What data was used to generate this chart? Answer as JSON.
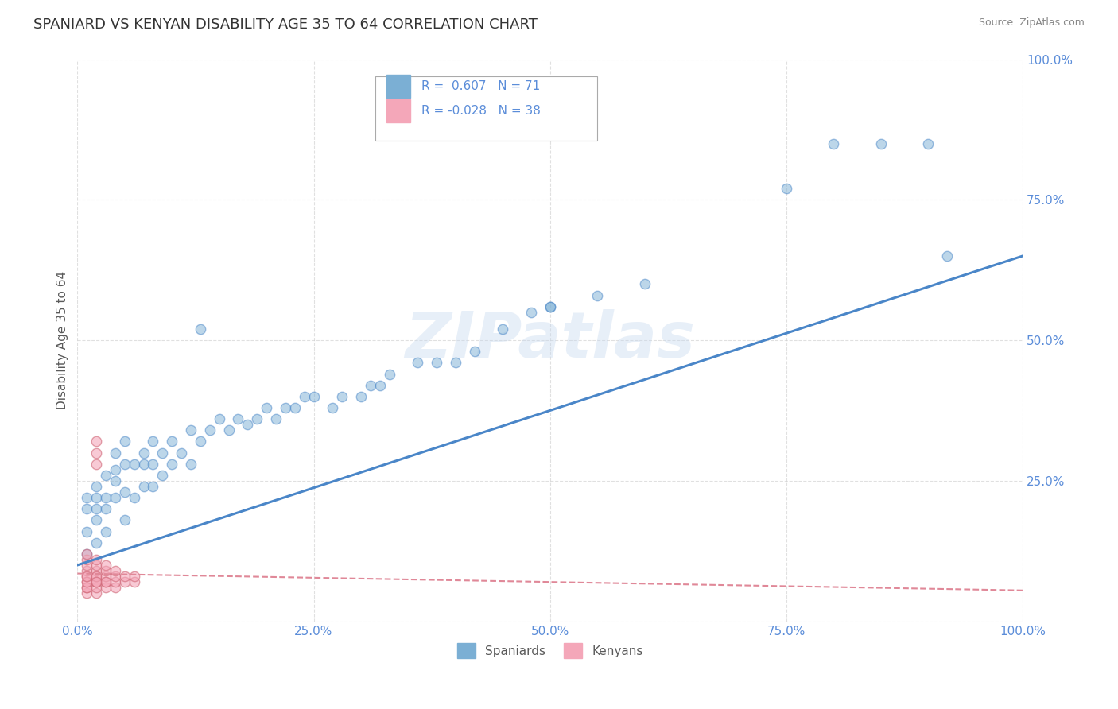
{
  "title": "SPANIARD VS KENYAN DISABILITY AGE 35 TO 64 CORRELATION CHART",
  "source": "Source: ZipAtlas.com",
  "ylabel": "Disability Age 35 to 64",
  "xlim": [
    0.0,
    1.0
  ],
  "ylim": [
    0.0,
    1.0
  ],
  "xticks": [
    0.0,
    0.25,
    0.5,
    0.75,
    1.0
  ],
  "yticks": [
    0.0,
    0.25,
    0.5,
    0.75,
    1.0
  ],
  "xticklabels": [
    "0.0%",
    "25.0%",
    "50.0%",
    "75.0%",
    "100.0%"
  ],
  "yticklabels": [
    "",
    "25.0%",
    "50.0%",
    "75.0%",
    "100.0%"
  ],
  "spaniard_color": "#7bafd4",
  "kenyan_color": "#f4a7b9",
  "spaniard_R": 0.607,
  "spaniard_N": 71,
  "kenyan_R": -0.028,
  "kenyan_N": 38,
  "legend_label_spaniard": "Spaniards",
  "legend_label_kenyan": "Kenyans",
  "watermark": "ZIPatlas",
  "spaniard_line_color": "#4a86c8",
  "kenyan_line_color": "#e08898",
  "background_color": "#ffffff",
  "grid_color": "#cccccc",
  "title_color": "#333333",
  "axis_label_color": "#5a5a5a",
  "tick_label_color": "#5b8dd9",
  "spaniard_x": [
    0.01,
    0.01,
    0.01,
    0.01,
    0.02,
    0.02,
    0.02,
    0.02,
    0.02,
    0.03,
    0.03,
    0.03,
    0.03,
    0.04,
    0.04,
    0.04,
    0.04,
    0.05,
    0.05,
    0.05,
    0.05,
    0.06,
    0.06,
    0.07,
    0.07,
    0.07,
    0.08,
    0.08,
    0.08,
    0.09,
    0.09,
    0.1,
    0.1,
    0.11,
    0.12,
    0.12,
    0.13,
    0.14,
    0.15,
    0.16,
    0.17,
    0.18,
    0.19,
    0.2,
    0.21,
    0.22,
    0.23,
    0.24,
    0.25,
    0.27,
    0.28,
    0.3,
    0.31,
    0.32,
    0.33,
    0.36,
    0.38,
    0.4,
    0.42,
    0.45,
    0.48,
    0.5,
    0.55,
    0.6,
    0.13,
    0.5,
    0.75,
    0.8,
    0.85,
    0.9,
    0.92
  ],
  "spaniard_y": [
    0.12,
    0.16,
    0.2,
    0.22,
    0.14,
    0.18,
    0.2,
    0.22,
    0.24,
    0.16,
    0.2,
    0.22,
    0.26,
    0.22,
    0.25,
    0.27,
    0.3,
    0.18,
    0.23,
    0.28,
    0.32,
    0.22,
    0.28,
    0.24,
    0.28,
    0.3,
    0.24,
    0.28,
    0.32,
    0.26,
    0.3,
    0.28,
    0.32,
    0.3,
    0.28,
    0.34,
    0.32,
    0.34,
    0.36,
    0.34,
    0.36,
    0.35,
    0.36,
    0.38,
    0.36,
    0.38,
    0.38,
    0.4,
    0.4,
    0.38,
    0.4,
    0.4,
    0.42,
    0.42,
    0.44,
    0.46,
    0.46,
    0.46,
    0.48,
    0.52,
    0.55,
    0.56,
    0.58,
    0.6,
    0.52,
    0.56,
    0.77,
    0.85,
    0.85,
    0.85,
    0.65
  ],
  "kenyan_x": [
    0.01,
    0.01,
    0.01,
    0.01,
    0.01,
    0.01,
    0.01,
    0.01,
    0.01,
    0.01,
    0.01,
    0.02,
    0.02,
    0.02,
    0.02,
    0.02,
    0.02,
    0.02,
    0.02,
    0.02,
    0.03,
    0.03,
    0.03,
    0.03,
    0.03,
    0.03,
    0.04,
    0.04,
    0.04,
    0.04,
    0.05,
    0.05,
    0.06,
    0.06,
    0.02,
    0.02,
    0.02,
    0.02
  ],
  "kenyan_y": [
    0.05,
    0.06,
    0.07,
    0.08,
    0.09,
    0.1,
    0.11,
    0.12,
    0.06,
    0.07,
    0.08,
    0.05,
    0.06,
    0.07,
    0.08,
    0.09,
    0.1,
    0.11,
    0.07,
    0.08,
    0.06,
    0.07,
    0.08,
    0.09,
    0.1,
    0.07,
    0.06,
    0.07,
    0.08,
    0.09,
    0.07,
    0.08,
    0.07,
    0.08,
    0.28,
    0.3,
    0.32,
    0.07
  ],
  "sp_line_x0": 0.0,
  "sp_line_y0": 0.1,
  "sp_line_x1": 1.0,
  "sp_line_y1": 0.65,
  "ke_line_x0": 0.0,
  "ke_line_y0": 0.085,
  "ke_line_x1": 1.0,
  "ke_line_y1": 0.055
}
